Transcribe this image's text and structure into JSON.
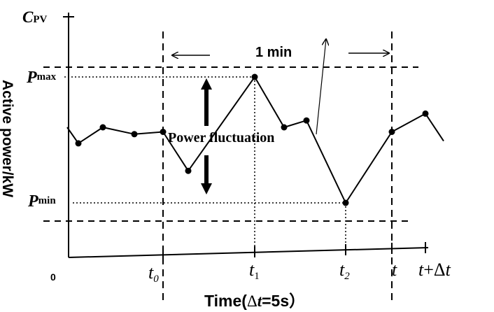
{
  "y_axis": {
    "symbol": "C",
    "symbol_sub": "PV",
    "label": "Active power/kW",
    "pmax_symbol": "P",
    "pmax_sub": "max",
    "pmin_symbol": "P",
    "pmin_sub": "min"
  },
  "x_axis": {
    "origin": "0",
    "label_prefix": "Time(",
    "label_delta": "Δ",
    "label_var": "t",
    "label_suffix": "=5s）",
    "ticks": [
      {
        "var": "t",
        "sub": "0"
      },
      {
        "var": "t",
        "sub": "1"
      },
      {
        "var": "t",
        "sub": "2"
      },
      {
        "var": "t",
        "sub": ""
      },
      {
        "var": "t",
        "sub": "",
        "suffix": "+Δ",
        "suffix_var": "t"
      }
    ]
  },
  "annotations": {
    "window": "1 min",
    "fluctuation": "Power fluctuation"
  },
  "series": {
    "color": "#000000",
    "points": [
      [
        0,
        5.2
      ],
      [
        1,
        4.5
      ],
      [
        2,
        5.2
      ],
      [
        3,
        4.9
      ],
      [
        4,
        5.0
      ],
      [
        5,
        3.3
      ],
      [
        6,
        7.4
      ],
      [
        7,
        5.2
      ],
      [
        8,
        5.5
      ],
      [
        9,
        1.9
      ],
      [
        10,
        5.0
      ],
      [
        11,
        5.8
      ],
      [
        12,
        4.6
      ]
    ],
    "markers": [
      1,
      2,
      3,
      4,
      5,
      6,
      7,
      8,
      9,
      10,
      11
    ]
  }
}
